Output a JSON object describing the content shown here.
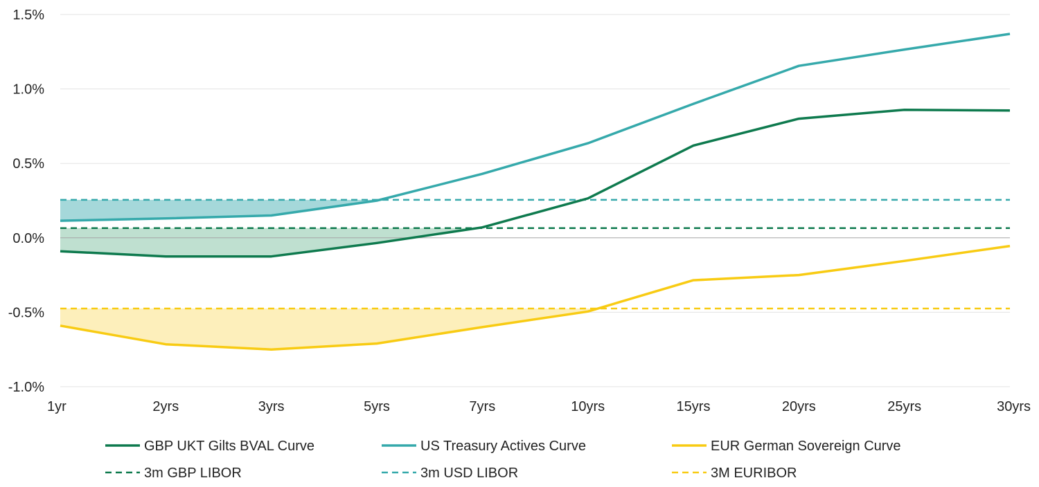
{
  "chart_data": {
    "type": "line",
    "title": "",
    "xlabel": "",
    "ylabel": "",
    "categories": [
      "1yr",
      "2yrs",
      "3yrs",
      "5yrs",
      "7yrs",
      "10yrs",
      "15yrs",
      "20yrs",
      "25yrs",
      "30yrs"
    ],
    "ylim": [
      -1.0,
      1.5
    ],
    "yticks": [
      -1.0,
      -0.5,
      0.0,
      0.5,
      1.0,
      1.5
    ],
    "ytick_labels": [
      "-1.0%",
      "-0.5%",
      "0.0%",
      "0.5%",
      "1.0%",
      "1.5%"
    ],
    "grid": true,
    "legend_position": "bottom",
    "series": [
      {
        "name": "GBP UKT Gilts BVAL Curve",
        "style": "solid",
        "color": "#0e7a4e",
        "values": [
          -0.09,
          -0.125,
          -0.125,
          -0.035,
          0.07,
          0.265,
          0.62,
          0.8,
          0.86,
          0.855
        ]
      },
      {
        "name": "US Treasury Actives Curve",
        "style": "solid",
        "color": "#35a9ab",
        "values": [
          0.115,
          0.13,
          0.15,
          0.25,
          0.43,
          0.635,
          0.9,
          1.155,
          1.265,
          1.37
        ]
      },
      {
        "name": "EUR German Sovereign Curve",
        "style": "solid",
        "color": "#f8cb13",
        "values": [
          -0.59,
          -0.715,
          -0.75,
          -0.71,
          -0.6,
          -0.495,
          -0.285,
          -0.25,
          -0.155,
          -0.055
        ]
      },
      {
        "name": "3m GBP LIBOR",
        "style": "dashed",
        "color": "#0e7a4e",
        "values": [
          0.065,
          0.065,
          0.065,
          0.065,
          0.065,
          0.065,
          0.065,
          0.065,
          0.065,
          0.065
        ]
      },
      {
        "name": "3m USD LIBOR",
        "style": "dashed",
        "color": "#35a9ab",
        "values": [
          0.255,
          0.255,
          0.255,
          0.255,
          0.255,
          0.255,
          0.255,
          0.255,
          0.255,
          0.255
        ]
      },
      {
        "name": "3M EURIBOR",
        "style": "dashed",
        "color": "#f8cb13",
        "values": [
          -0.475,
          -0.475,
          -0.475,
          -0.475,
          -0.475,
          -0.475,
          -0.475,
          -0.475,
          -0.475,
          -0.475
        ]
      }
    ],
    "shaded_areas": [
      {
        "between": [
          "US Treasury Actives Curve",
          "3m USD LIBOR"
        ],
        "color": "#a5d8da"
      },
      {
        "between": [
          "GBP UKT Gilts BVAL Curve",
          "3m GBP LIBOR"
        ],
        "color": "#bfe0d0"
      },
      {
        "between": [
          "EUR German Sovereign Curve",
          "3M EURIBOR"
        ],
        "color": "#fdefbb"
      }
    ]
  }
}
